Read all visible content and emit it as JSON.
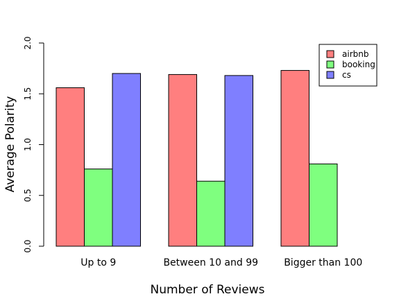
{
  "chart_data": {
    "type": "bar",
    "categories": [
      "Up to 9",
      "Between 10 and 99",
      "Bigger than 100"
    ],
    "series": [
      {
        "name": "airbnb",
        "values": [
          1.56,
          1.69,
          1.73
        ],
        "color": "#ff7f7f"
      },
      {
        "name": "booking",
        "values": [
          0.76,
          0.64,
          0.81
        ],
        "color": "#7fff7f"
      },
      {
        "name": "cs",
        "values": [
          1.7,
          1.68,
          0.0
        ],
        "color": "#7f7fff"
      }
    ],
    "xlabel": "Number of Reviews",
    "ylabel": "Average Polarity",
    "ylim": [
      0,
      2.0
    ],
    "yticks": [
      "0.0",
      "0.5",
      "1.0",
      "1.5",
      "2.0"
    ],
    "legend_position": "top-right",
    "grid": false
  }
}
